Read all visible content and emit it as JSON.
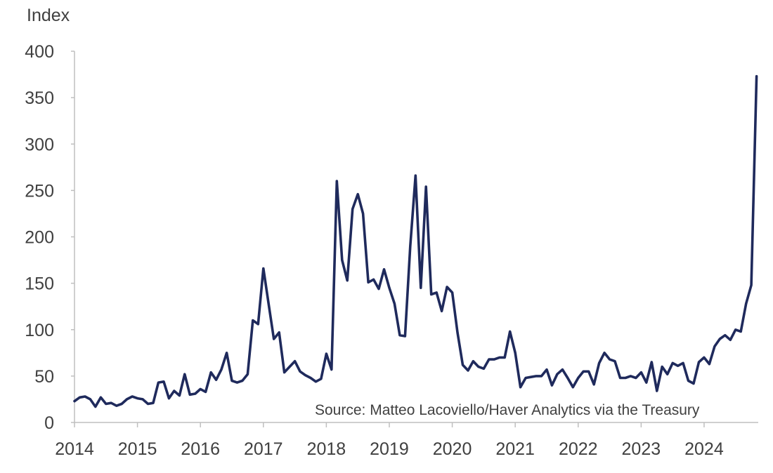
{
  "chart_data": {
    "type": "line",
    "ylabel": "Index",
    "ylim": [
      0,
      400
    ],
    "yticks": [
      0,
      50,
      100,
      150,
      200,
      250,
      300,
      350,
      400
    ],
    "xlim": [
      2014,
      2024.86
    ],
    "xticks": [
      "2014",
      "2015",
      "2016",
      "2017",
      "2018",
      "2019",
      "2020",
      "2021",
      "2022",
      "2023",
      "2024"
    ],
    "grid": false,
    "annotation": "Source: Matteo Lacoviello/Haver Analytics via the Treasury",
    "colors": {
      "line": "#1f2a5c",
      "axis": "#bfbfbf",
      "text": "#404040"
    },
    "series": [
      {
        "x": [
          2014.0,
          2014.083,
          2014.167,
          2014.25,
          2014.333,
          2014.417,
          2014.5,
          2014.583,
          2014.667,
          2014.75,
          2014.833,
          2014.917,
          2015.0,
          2015.083,
          2015.167,
          2015.25,
          2015.333,
          2015.417,
          2015.5,
          2015.583,
          2015.667,
          2015.75,
          2015.833,
          2015.917,
          2016.0,
          2016.083,
          2016.167,
          2016.25,
          2016.333,
          2016.417,
          2016.5,
          2016.583,
          2016.667,
          2016.75,
          2016.833,
          2016.917,
          2017.0,
          2017.083,
          2017.167,
          2017.25,
          2017.333,
          2017.417,
          2017.5,
          2017.583,
          2017.667,
          2017.75,
          2017.833,
          2017.917,
          2018.0,
          2018.083,
          2018.167,
          2018.25,
          2018.333,
          2018.417,
          2018.5,
          2018.583,
          2018.667,
          2018.75,
          2018.833,
          2018.917,
          2019.0,
          2019.083,
          2019.167,
          2019.25,
          2019.333,
          2019.417,
          2019.5,
          2019.583,
          2019.667,
          2019.75,
          2019.833,
          2019.917,
          2020.0,
          2020.083,
          2020.167,
          2020.25,
          2020.333,
          2020.417,
          2020.5,
          2020.583,
          2020.667,
          2020.75,
          2020.833,
          2020.917,
          2021.0,
          2021.083,
          2021.167,
          2021.25,
          2021.333,
          2021.417,
          2021.5,
          2021.583,
          2021.667,
          2021.75,
          2021.833,
          2021.917,
          2022.0,
          2022.083,
          2022.167,
          2022.25,
          2022.333,
          2022.417,
          2022.5,
          2022.583,
          2022.667,
          2022.75,
          2022.833,
          2022.917,
          2023.0,
          2023.083,
          2023.167,
          2023.25,
          2023.333,
          2023.417,
          2023.5,
          2023.583,
          2023.667,
          2023.75,
          2023.833,
          2023.917,
          2024.0,
          2024.083,
          2024.167,
          2024.25,
          2024.333,
          2024.417,
          2024.5,
          2024.583,
          2024.667,
          2024.75,
          2024.833
        ],
        "values": [
          23,
          27,
          28,
          25,
          17,
          27,
          20,
          21,
          18,
          20,
          25,
          28,
          26,
          25,
          20,
          21,
          43,
          44,
          26,
          34,
          29,
          52,
          30,
          31,
          36,
          33,
          54,
          46,
          57,
          75,
          45,
          43,
          45,
          52,
          110,
          106,
          166,
          128,
          90,
          97,
          54,
          60,
          66,
          55,
          51,
          48,
          44,
          47,
          74,
          57,
          260,
          175,
          153,
          230,
          246,
          225,
          151,
          154,
          144,
          165,
          145,
          128,
          94,
          93,
          190,
          266,
          145,
          254,
          138,
          140,
          120,
          146,
          140,
          97,
          62,
          56,
          66,
          60,
          58,
          68,
          68,
          70,
          70,
          98,
          75,
          38,
          48,
          49,
          50,
          50,
          57,
          40,
          52,
          57,
          48,
          38,
          48,
          55,
          55,
          41,
          64,
          75,
          68,
          66,
          48,
          48,
          50,
          48,
          54,
          43,
          65,
          34,
          60,
          52,
          64,
          61,
          64,
          45,
          42,
          65,
          70,
          63,
          82,
          90,
          94,
          89,
          100,
          98,
          128,
          148,
          373
        ]
      }
    ]
  }
}
